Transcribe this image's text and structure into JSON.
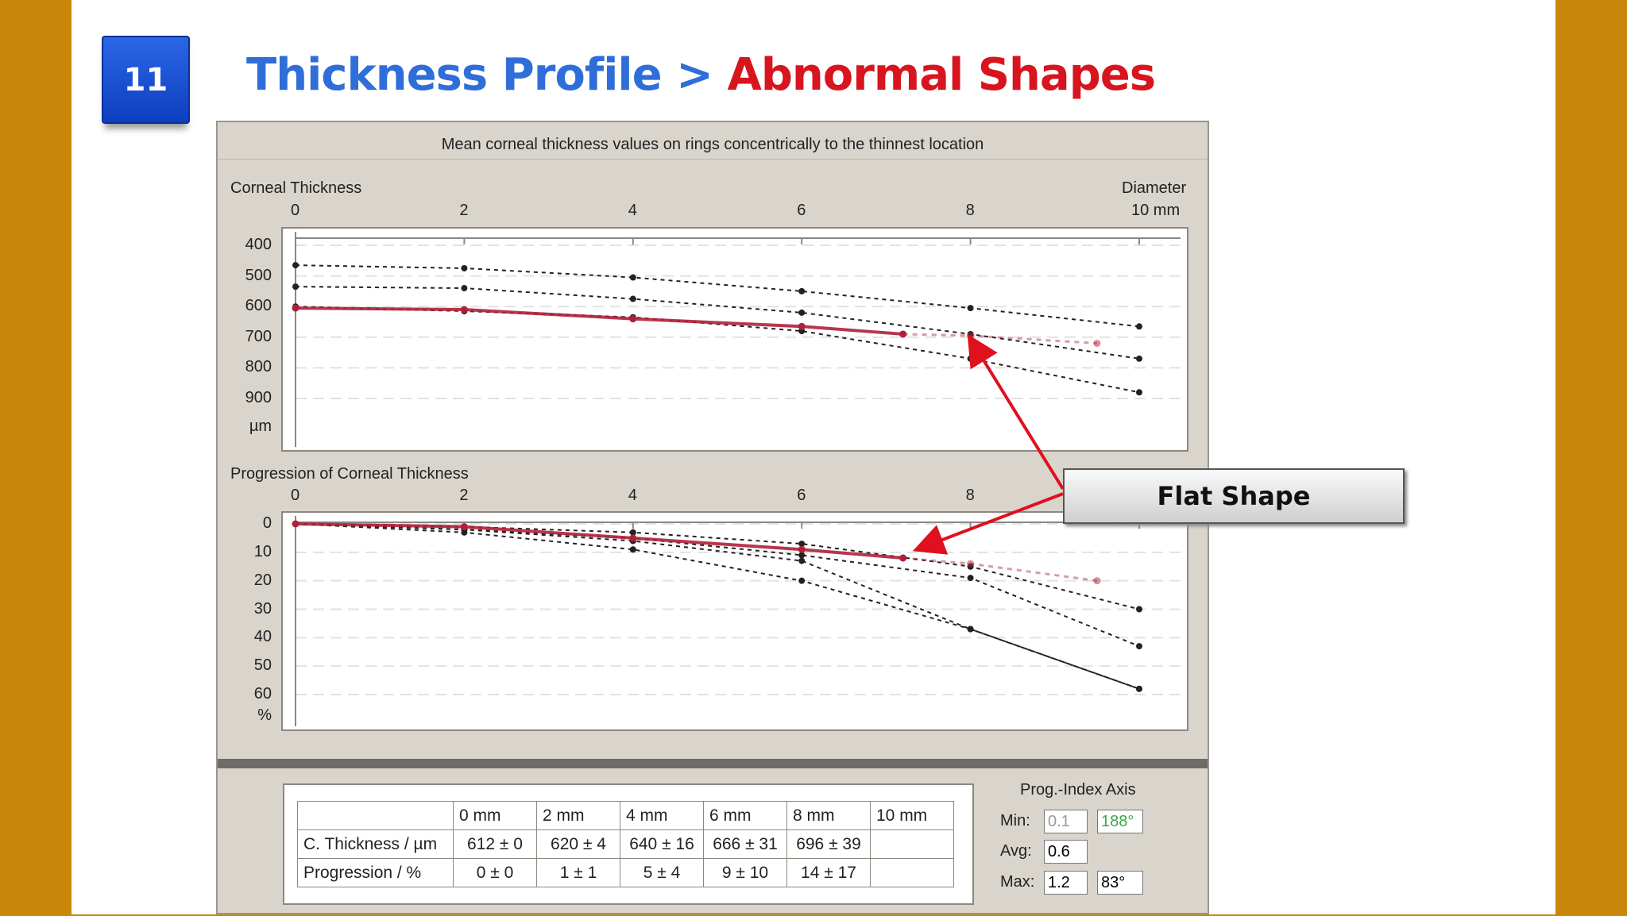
{
  "slide": {
    "number": "11",
    "title_part1": "Thickness Profile > ",
    "title_part2": "Abnormal Shapes"
  },
  "panel": {
    "caption": "Mean corneal thickness values on rings concentrically to the thinnest location",
    "top_chart_title": "Corneal Thickness",
    "top_chart_axis_right": "Diameter",
    "top_chart_unit_right": "10 mm",
    "bottom_chart_title": "Progression of Corneal Thickness"
  },
  "callout": {
    "label": "Flat Shape"
  },
  "table": {
    "headers": [
      "",
      "0 mm",
      "2 mm",
      "4 mm",
      "6 mm",
      "8 mm",
      "10 mm"
    ],
    "rows": [
      [
        "C. Thickness / µm",
        "612 ± 0",
        "620 ± 4",
        "640 ± 16",
        "666 ± 31",
        "696 ± 39",
        ""
      ],
      [
        "Progression / %",
        "0 ± 0",
        "1 ± 1",
        "5 ± 4",
        "9 ± 10",
        "14 ± 17",
        ""
      ]
    ]
  },
  "prog_index": {
    "title": "Prog.-Index Axis",
    "min_label": "Min:",
    "min_value": "0.1",
    "min_angle": "188°",
    "avg_label": "Avg:",
    "avg_value": "0.6",
    "max_label": "Max:",
    "max_value": "1.2",
    "max_angle": "83°"
  },
  "colors": {
    "highlight": "#b0203a",
    "reference": "#222222",
    "arrow": "#e0101e"
  },
  "chart_data": [
    {
      "type": "line",
      "title": "Corneal Thickness",
      "xlabel": "Diameter",
      "ylabel": "µm",
      "x_ticks": [
        "0",
        "2",
        "4",
        "6",
        "8",
        "10 mm"
      ],
      "y_ticks": [
        "400",
        "500",
        "600",
        "700",
        "800",
        "900",
        "µm"
      ],
      "xlim": [
        0,
        10
      ],
      "ylim": [
        400,
        900
      ],
      "y_inverted": true,
      "series": [
        {
          "style": "reference",
          "x": [
            0,
            2,
            4,
            6,
            8,
            10
          ],
          "y": [
            465,
            475,
            505,
            550,
            605,
            665
          ]
        },
        {
          "style": "reference",
          "x": [
            0,
            2,
            4,
            6,
            8,
            10
          ],
          "y": [
            535,
            540,
            575,
            620,
            690,
            770
          ]
        },
        {
          "style": "reference",
          "x": [
            0,
            2,
            4,
            6,
            8,
            10
          ],
          "y": [
            600,
            615,
            635,
            680,
            770,
            880
          ]
        },
        {
          "style": "highlight",
          "x": [
            0,
            2,
            4,
            6,
            7.2
          ],
          "y": [
            605,
            610,
            640,
            665,
            690
          ]
        },
        {
          "style": "highlight-faded",
          "x": [
            7.2,
            8,
            9.5
          ],
          "y": [
            690,
            695,
            720
          ]
        }
      ]
    },
    {
      "type": "line",
      "title": "Progression of Corneal Thickness",
      "ylabel": "%",
      "x_ticks": [
        "0",
        "2",
        "4",
        "6",
        "8"
      ],
      "y_ticks": [
        "0",
        "10",
        "20",
        "30",
        "40",
        "50",
        "60",
        "%"
      ],
      "xlim": [
        0,
        10
      ],
      "ylim": [
        0,
        60
      ],
      "y_inverted": true,
      "series": [
        {
          "style": "reference",
          "x": [
            0,
            2,
            4,
            6,
            8,
            10
          ],
          "y": [
            0,
            1,
            3,
            7,
            15,
            30
          ]
        },
        {
          "style": "reference",
          "x": [
            0,
            2,
            4,
            6,
            8,
            10
          ],
          "y": [
            0,
            2,
            5,
            11,
            19,
            43
          ]
        },
        {
          "style": "reference",
          "x": [
            0,
            2,
            4,
            6,
            8,
            10
          ],
          "y": [
            0,
            2,
            6,
            13,
            37,
            58
          ]
        },
        {
          "style": "reference",
          "x": [
            0,
            2,
            4,
            6,
            8,
            10
          ],
          "y": [
            0,
            3,
            9,
            20,
            37,
            58
          ]
        },
        {
          "style": "highlight",
          "x": [
            0,
            2,
            4,
            6,
            7.2
          ],
          "y": [
            0,
            1,
            5,
            9,
            12
          ]
        },
        {
          "style": "highlight-faded",
          "x": [
            7.2,
            8,
            9.5
          ],
          "y": [
            12,
            14,
            20
          ]
        }
      ]
    }
  ]
}
